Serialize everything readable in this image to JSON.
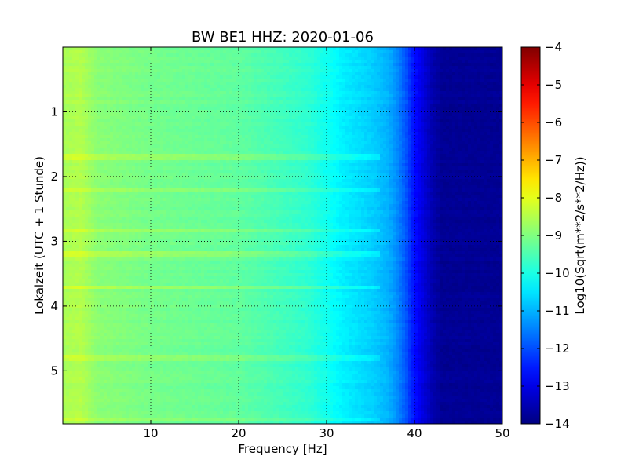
{
  "chart_data": {
    "type": "heatmap",
    "title": "BW BE1 HHZ: 2020-01-06",
    "xlabel": "Frequency [Hz]",
    "ylabel": "Lokalzeit (UTC + 1 Stunde)",
    "xlim": [
      0,
      50
    ],
    "ylim": [
      0.0,
      5.82
    ],
    "y_inverted": true,
    "x_ticks": [
      10,
      20,
      30,
      40,
      50
    ],
    "x_tick_labels": [
      "10",
      "20",
      "30",
      "40",
      "50"
    ],
    "y_ticks": [
      1,
      2,
      3,
      4,
      5
    ],
    "y_tick_labels": [
      "1",
      "2",
      "3",
      "4",
      "5"
    ],
    "grid": true,
    "colormap": "jet",
    "colorbar": {
      "label": "Log10(Sqrt(m**2/s**2/Hz))",
      "min": -14,
      "max": -4,
      "ticks": [
        -4,
        -5,
        -6,
        -7,
        -8,
        -9,
        -10,
        -11,
        -12,
        -13,
        -14
      ],
      "tick_labels": [
        "−4",
        "−5",
        "−6",
        "−7",
        "−8",
        "−9",
        "−10",
        "−11",
        "−12",
        "−13",
        "−14"
      ]
    },
    "frequency_profile": {
      "frequency_hz": [
        0,
        2,
        4,
        10,
        15,
        20,
        25,
        28,
        30,
        32,
        35,
        37,
        38,
        39,
        40,
        41,
        42,
        43,
        50
      ],
      "log10_amplitude": [
        -8.6,
        -8.5,
        -8.9,
        -9.1,
        -9.2,
        -9.3,
        -9.6,
        -9.8,
        -10.1,
        -10.4,
        -10.7,
        -11.0,
        -11.4,
        -11.9,
        -12.6,
        -13.1,
        -13.5,
        -13.8,
        -13.8
      ]
    },
    "time_bands": [
      {
        "time": 1.7,
        "delta": 0.35
      },
      {
        "time": 2.2,
        "delta": 0.25
      },
      {
        "time": 2.85,
        "delta": 0.3
      },
      {
        "time": 3.2,
        "delta": 0.35
      },
      {
        "time": 3.7,
        "delta": 0.45
      },
      {
        "time": 4.8,
        "delta": 0.3
      },
      {
        "time": 5.75,
        "delta": 0.3
      }
    ]
  }
}
